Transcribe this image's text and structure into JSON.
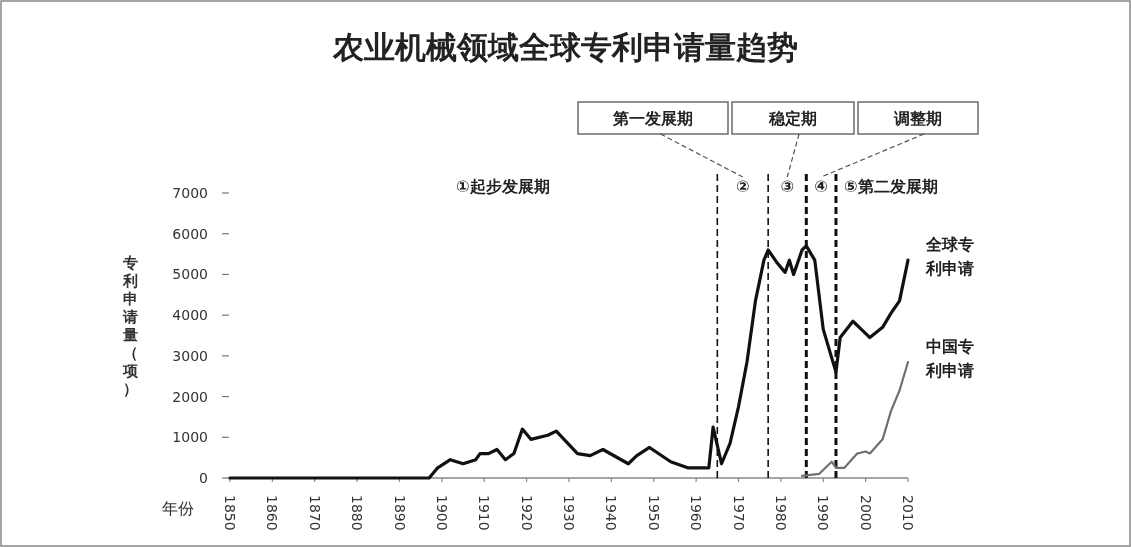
{
  "chart_data": {
    "type": "line",
    "title": "农业机械领域全球专利申请量趋势",
    "xlabel": "年份",
    "ylabel": "专利申请量（项）",
    "xlim": [
      1850,
      2010
    ],
    "ylim": [
      0,
      7000
    ],
    "xticks": [
      1850,
      1860,
      1870,
      1880,
      1890,
      1900,
      1910,
      1920,
      1930,
      1940,
      1950,
      1960,
      1970,
      1980,
      1990,
      2000,
      2010
    ],
    "yticks": [
      0,
      1000,
      2000,
      3000,
      4000,
      5000,
      6000,
      7000
    ],
    "series": [
      {
        "name": "全球专利申请",
        "color": "#111111",
        "x": [
          1850,
          1897,
          1899,
          1902,
          1905,
          1908,
          1909,
          1911,
          1913,
          1915,
          1917,
          1919,
          1921,
          1925,
          1927,
          1932,
          1935,
          1938,
          1944,
          1946,
          1949,
          1954,
          1958,
          1963,
          1964,
          1966,
          1968,
          1970,
          1972,
          1974,
          1976,
          1977,
          1979,
          1981,
          1982,
          1983,
          1985,
          1986,
          1988,
          1990,
          1993,
          1994,
          1997,
          1999,
          2001,
          2004,
          2006,
          2008,
          2010
        ],
        "values": [
          0,
          0,
          250,
          450,
          350,
          450,
          600,
          600,
          700,
          450,
          600,
          1200,
          950,
          1050,
          1150,
          600,
          550,
          700,
          350,
          550,
          750,
          400,
          250,
          250,
          1250,
          350,
          850,
          1750,
          2850,
          4350,
          5350,
          5600,
          5300,
          5050,
          5350,
          5000,
          5600,
          5700,
          5350,
          3650,
          2600,
          3450,
          3850,
          3650,
          3450,
          3700,
          4050,
          4350,
          5350
        ]
      },
      {
        "name": "中国专利申请",
        "color": "#707070",
        "x": [
          1985,
          1989,
          1992,
          1993,
          1995,
          1998,
          2000,
          2001,
          2004,
          2006,
          2008,
          2010
        ],
        "values": [
          50,
          100,
          400,
          250,
          250,
          600,
          650,
          600,
          950,
          1650,
          2150,
          2850
        ]
      }
    ],
    "ref_lines": [
      {
        "axis": "x",
        "value": 1965,
        "line_style": "dashed"
      },
      {
        "axis": "x",
        "value": 1977,
        "line_style": "dashed"
      },
      {
        "axis": "x",
        "value": 1986,
        "line_style": "dashed"
      },
      {
        "axis": "x",
        "value": 1993,
        "line_style": "dashed"
      }
    ],
    "annotations": [
      "①起步发展期",
      "②",
      "③",
      "④",
      "⑤第二发展期",
      "第一发展期",
      "稳定期",
      "调整期"
    ]
  }
}
